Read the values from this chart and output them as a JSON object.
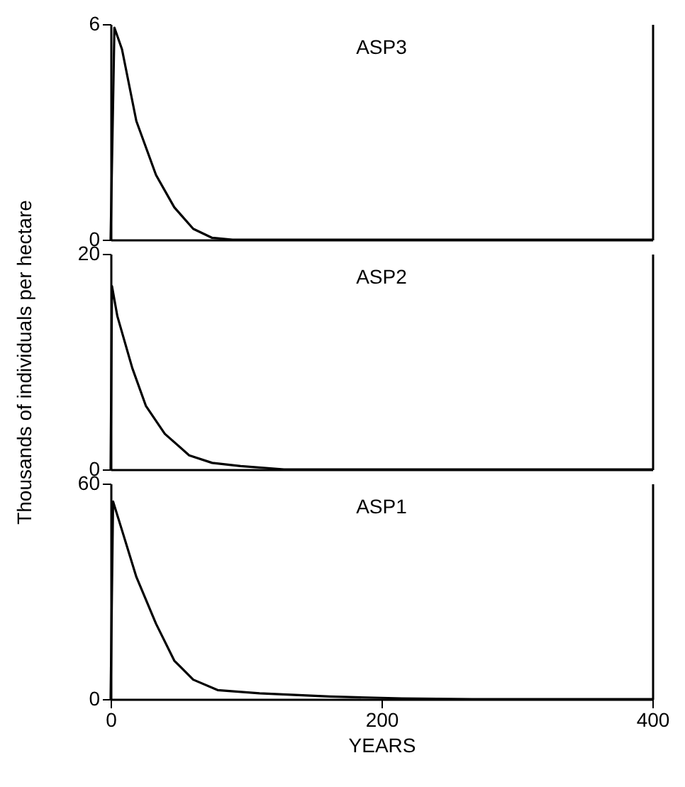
{
  "chart_data": [
    {
      "type": "line",
      "title": "ASP3",
      "x": [
        0,
        2.8,
        8.4,
        19,
        33.5,
        47,
        61,
        75,
        90,
        400
      ],
      "values": [
        0,
        5.9,
        5.3,
        3.3,
        1.8,
        0.9,
        0.3,
        0.05,
        0,
        0
      ],
      "color": "#000000",
      "xlim": [
        0,
        400
      ],
      "xticks": [
        0,
        200,
        400
      ],
      "ylim": [
        0,
        6
      ],
      "yticks": [
        0,
        6
      ],
      "tick_labels": "y"
    },
    {
      "type": "line",
      "title": "ASP2",
      "ylabel": "Thousands of individuals per hectare",
      "x": [
        0,
        1,
        5,
        16,
        26,
        40,
        58,
        75,
        96,
        128,
        400
      ],
      "values": [
        0,
        17,
        14.2,
        9.4,
        5.9,
        3.3,
        1.3,
        0.6,
        0.3,
        0,
        0
      ],
      "color": "#000000",
      "xlim": [
        0,
        400
      ],
      "xticks": [
        0,
        200,
        400
      ],
      "ylim": [
        0,
        20
      ],
      "yticks": [
        0,
        20
      ],
      "tick_labels": "y"
    },
    {
      "type": "line",
      "title": "ASP1",
      "xlabel": "YEARS",
      "x": [
        0,
        1.8,
        8.4,
        19,
        33.5,
        47,
        61,
        79,
        110,
        162,
        215,
        267,
        400
      ],
      "values": [
        0,
        55,
        47,
        34,
        21,
        10.7,
        5.4,
        2.5,
        1.6,
        0.7,
        0.2,
        0,
        0
      ],
      "color": "#000000",
      "xlim": [
        0,
        400
      ],
      "xticks": [
        0,
        200,
        400
      ],
      "ylim": [
        0,
        60
      ],
      "yticks": [
        0,
        60
      ]
    }
  ]
}
